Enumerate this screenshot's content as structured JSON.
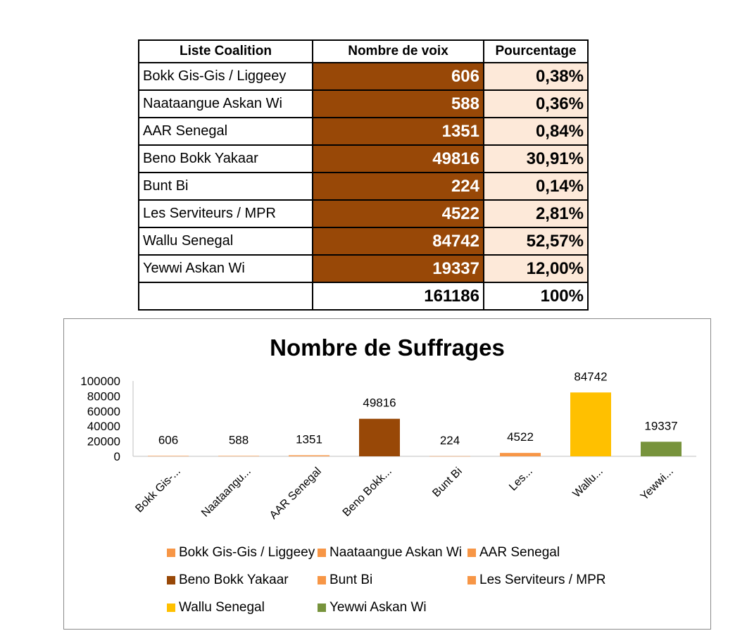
{
  "table": {
    "headers": [
      "Liste Coalition",
      "Nombre de voix",
      "Pourcentage"
    ],
    "rows": [
      {
        "name": "Bokk Gis-Gis / Liggeey",
        "votes": "606",
        "pct": "0,38%"
      },
      {
        "name": "Naataangue Askan Wi",
        "votes": "588",
        "pct": "0,36%"
      },
      {
        "name": "AAR Senegal",
        "votes": "1351",
        "pct": "0,84%"
      },
      {
        "name": "Beno Bokk Yakaar",
        "votes": "49816",
        "pct": "30,91%"
      },
      {
        "name": "Bunt Bi",
        "votes": "224",
        "pct": "0,14%"
      },
      {
        "name": "Les Serviteurs / MPR",
        "votes": "4522",
        "pct": "2,81%"
      },
      {
        "name": "Wallu Senegal",
        "votes": "84742",
        "pct": "52,57%"
      },
      {
        "name": "Yewwi Askan Wi",
        "votes": "19337",
        "pct": "12,00%"
      }
    ],
    "total_votes": "161186",
    "total_pct": "100%",
    "colors": {
      "votes_fill": "#984807",
      "pct_fill": "#fde9d9"
    }
  },
  "chart_data": {
    "type": "bar",
    "title": "Nombre de Suffrages",
    "xlabel": "",
    "ylabel": "",
    "ylim": [
      0,
      100000
    ],
    "yticks": [
      "0",
      "20000",
      "40000",
      "60000",
      "80000",
      "100000"
    ],
    "categories": [
      "Bokk Gis-Gis / Liggeey",
      "Naataangue Askan Wi",
      "AAR Senegal",
      "Beno Bokk Yakaar",
      "Bunt Bi",
      "Les Serviteurs / MPR",
      "Wallu Senegal",
      "Yewwi Askan Wi"
    ],
    "tick_labels": [
      "Bokk Gis-...",
      "Naataangu...",
      "AAR Senegal",
      "Beno Bokk...",
      "Bunt Bi",
      "Les...",
      "Wallu...",
      "Yewwi..."
    ],
    "values": [
      606,
      588,
      1351,
      49816,
      224,
      4522,
      84742,
      19337
    ],
    "data_labels": [
      "606",
      "588",
      "1351",
      "49816",
      "224",
      "4522",
      "84742",
      "19337"
    ],
    "colors": [
      "#f79646",
      "#f79646",
      "#f79646",
      "#984807",
      "#f79646",
      "#f79646",
      "#ffc000",
      "#77933c"
    ],
    "legend": [
      "Bokk Gis-Gis / Liggeey",
      "Naataangue Askan Wi",
      "AAR Senegal",
      "Beno Bokk Yakaar",
      "Bunt Bi",
      "Les Serviteurs / MPR",
      "Wallu Senegal",
      "Yewwi Askan Wi"
    ],
    "legend_position": "bottom",
    "grid": false
  }
}
